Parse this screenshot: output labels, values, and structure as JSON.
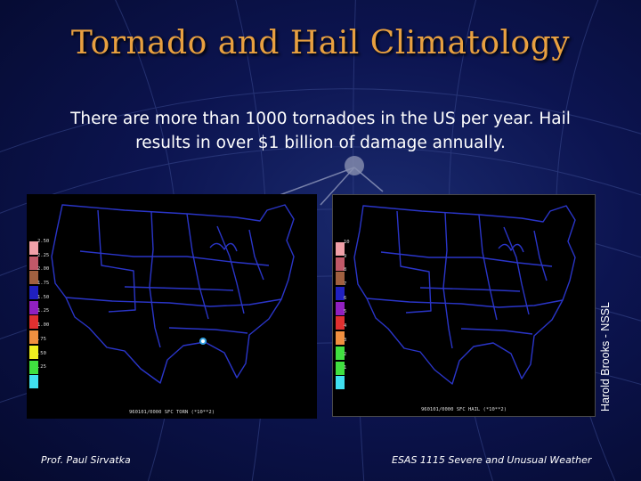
{
  "slide": {
    "title": "Tornado and Hail Climatology",
    "subtitle_line1": "There are more than 1000 tornadoes in the US per year. Hail",
    "subtitle_line2": "results in over $1 billion of damage annually.",
    "credit": "Harold Brooks - NSSL",
    "footer_left": "Prof. Paul Sirvatka",
    "footer_right": "ESAS 1115 Severe and Unusual Weather"
  },
  "colors": {
    "title": "#e8a040",
    "background": "#0c1450",
    "map_outline": "#2a35c8"
  },
  "tornado_map": {
    "caption": "960101/0000 SFC TORN (*10**2)",
    "legend": [
      {
        "label": "2.50",
        "color": "#f0a0a8"
      },
      {
        "label": "2.25",
        "color": "#c05868"
      },
      {
        "label": "2.00",
        "color": "#a06040"
      },
      {
        "label": "1.75",
        "color": "#2020c0"
      },
      {
        "label": "1.50",
        "color": "#9020c0"
      },
      {
        "label": "1.25",
        "color": "#e03030"
      },
      {
        "label": "1.00",
        "color": "#f09040"
      },
      {
        "label": ".75",
        "color": "#f0f020"
      },
      {
        "label": ".50",
        "color": "#40e040"
      },
      {
        "label": ".25",
        "color": "#40e0f0"
      }
    ]
  },
  "hail_map": {
    "caption": "960101/0000 SFC HAIL (*10**2)",
    "legend": [
      {
        "label": "10",
        "color": "#f0a0a8"
      },
      {
        "label": "9",
        "color": "#c05868"
      },
      {
        "label": "8",
        "color": "#a06040"
      },
      {
        "label": "7",
        "color": "#2020c0"
      },
      {
        "label": "6",
        "color": "#9020c0"
      },
      {
        "label": "5",
        "color": "#e03030"
      },
      {
        "label": "4",
        "color": "#f09040"
      },
      {
        "label": "3",
        "color": "#40e040"
      },
      {
        "label": "2",
        "color": "#40e040"
      },
      {
        "label": "1",
        "color": "#40e0f0"
      }
    ]
  }
}
